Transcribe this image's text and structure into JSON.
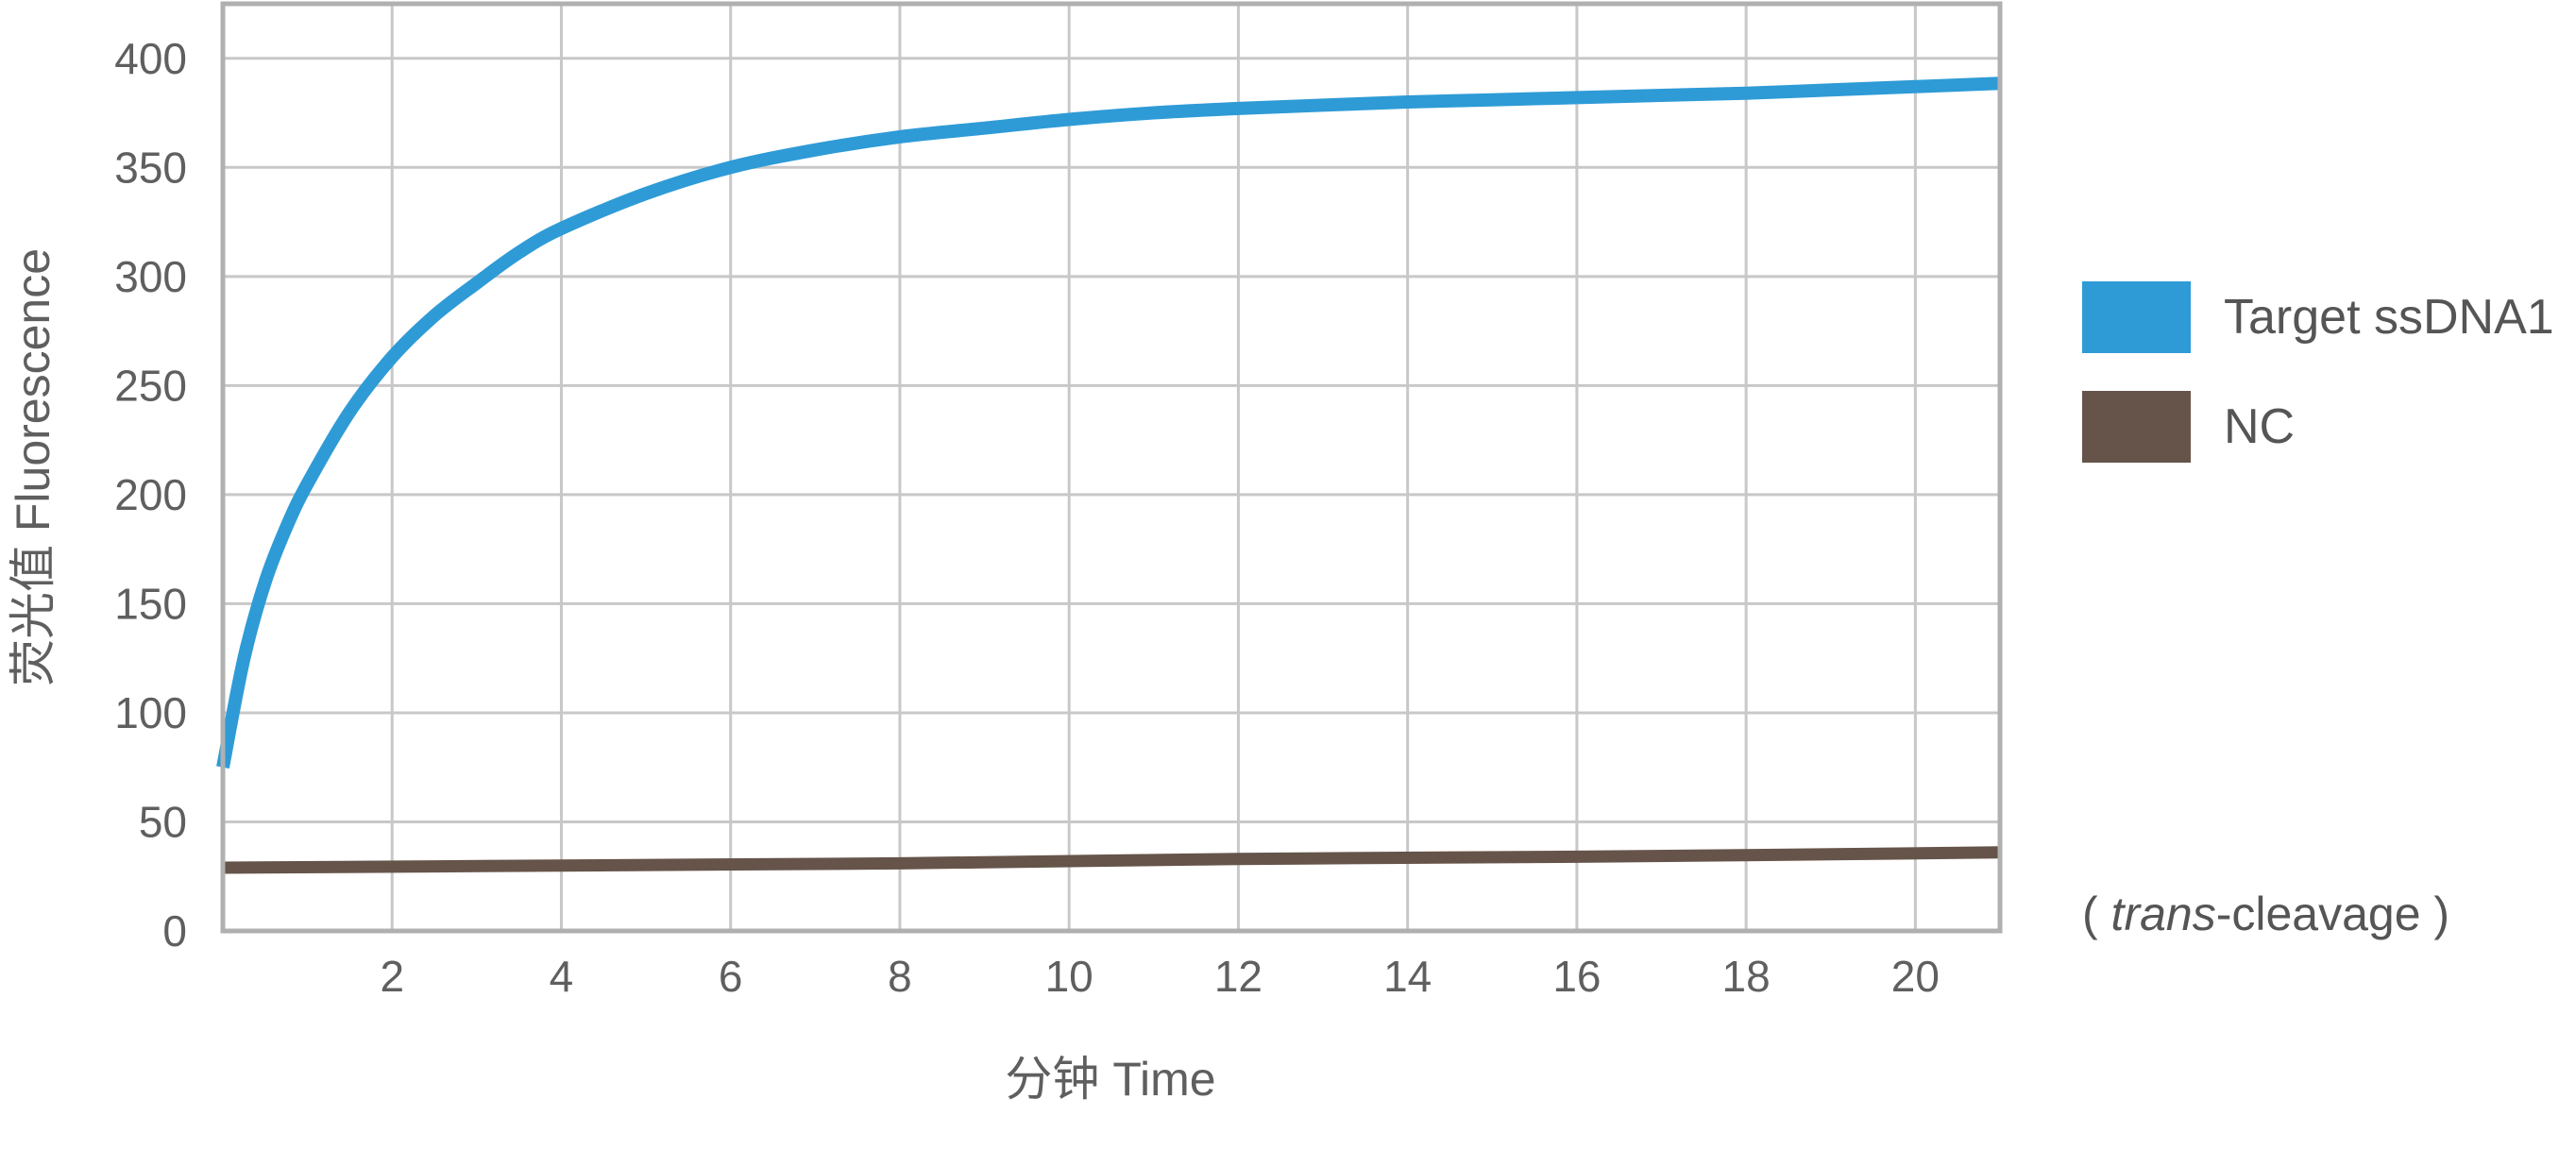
{
  "chart_data": {
    "type": "line",
    "title": "",
    "xlabel": "分钟 Time",
    "ylabel": "荧光值 Fluorescence",
    "xlim": [
      0,
      21
    ],
    "ylim": [
      0,
      425
    ],
    "xticks": [
      2,
      4,
      6,
      8,
      10,
      12,
      14,
      16,
      18,
      20
    ],
    "yticks": [
      0,
      50,
      100,
      150,
      200,
      250,
      300,
      350,
      400
    ],
    "grid": true,
    "legend_position": "right",
    "note": "( trans-cleavage )",
    "note_parts": {
      "open": "( ",
      "italic": "trans",
      "rest": "-cleavage )"
    },
    "series": [
      {
        "name": "Target ssDNA1",
        "color": "#2e9bd6",
        "points": [
          [
            0,
            75
          ],
          [
            0.25,
            125
          ],
          [
            0.5,
            160
          ],
          [
            0.75,
            185
          ],
          [
            1,
            205
          ],
          [
            1.5,
            238
          ],
          [
            2,
            263
          ],
          [
            2.5,
            282
          ],
          [
            3,
            297
          ],
          [
            3.5,
            311
          ],
          [
            4,
            322
          ],
          [
            5,
            338
          ],
          [
            6,
            350
          ],
          [
            7,
            358
          ],
          [
            8,
            364
          ],
          [
            9,
            368
          ],
          [
            10,
            372
          ],
          [
            11,
            375
          ],
          [
            12,
            377
          ],
          [
            13,
            378.5
          ],
          [
            14,
            380
          ],
          [
            15,
            381
          ],
          [
            16,
            382
          ],
          [
            17,
            383
          ],
          [
            18,
            384
          ],
          [
            19,
            385.5
          ],
          [
            20,
            387
          ],
          [
            21,
            388.5
          ]
        ]
      },
      {
        "name": "NC",
        "color": "#66544a",
        "points": [
          [
            0,
            29
          ],
          [
            4,
            30
          ],
          [
            8,
            31
          ],
          [
            12,
            33
          ],
          [
            16,
            34
          ],
          [
            21,
            36
          ]
        ]
      }
    ]
  }
}
